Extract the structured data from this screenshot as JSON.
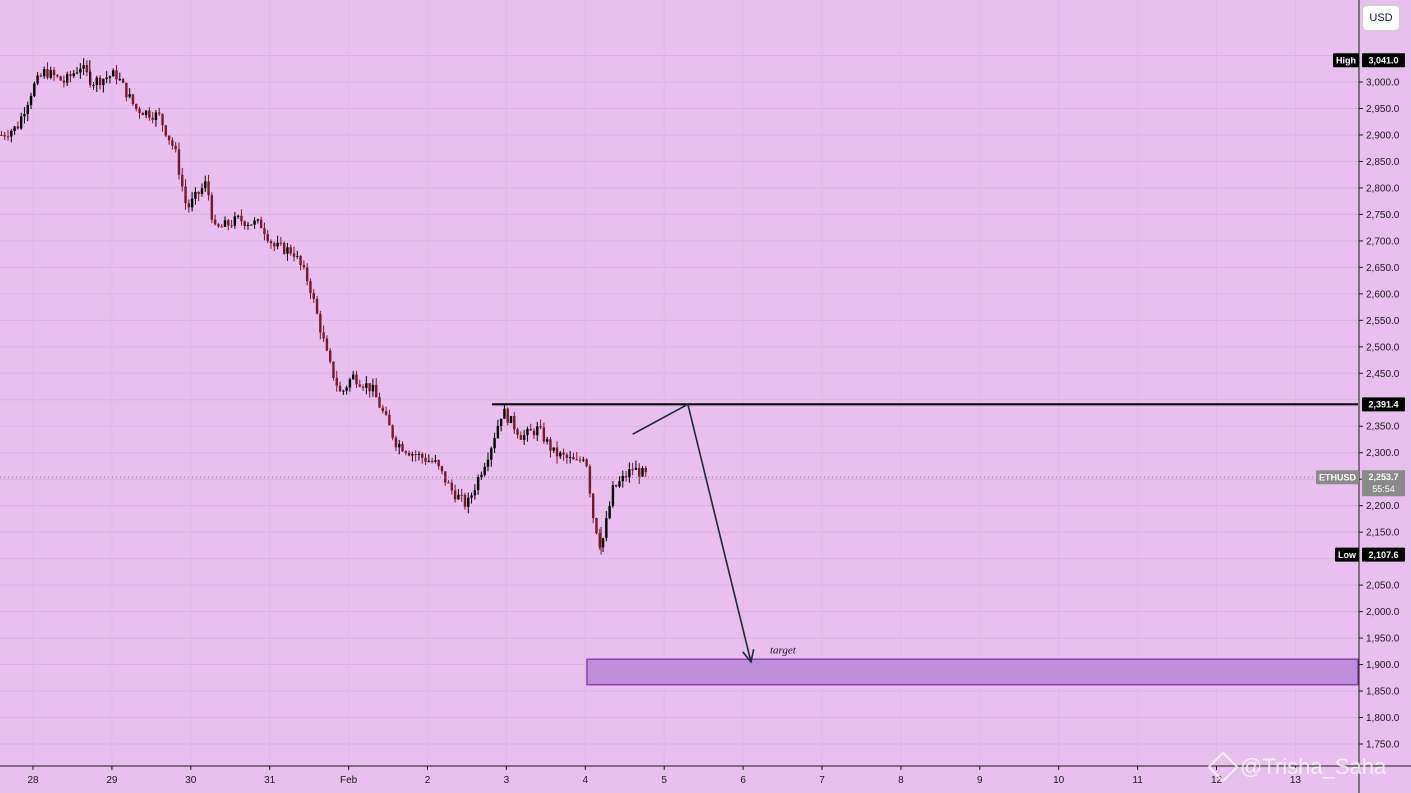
{
  "chart_data": {
    "type": "candlestick",
    "symbol": "ETHUSD",
    "currency": "USD",
    "ylim": [
      1720,
      3100
    ],
    "y_ticks": [
      "1,750.0",
      "1,800.0",
      "1,850.0",
      "1,900.0",
      "1,950.0",
      "2,000.0",
      "2,050.0",
      "2,150.0",
      "2,200.0",
      "2,250.0",
      "2,300.0",
      "2,350.0",
      "2,450.0",
      "2,500.0",
      "2,550.0",
      "2,600.0",
      "2,650.0",
      "2,700.0",
      "2,750.0",
      "2,800.0",
      "2,850.0",
      "2,900.0",
      "2,950.0",
      "3,000.0"
    ],
    "x_ticks": [
      {
        "label": "28",
        "day": 0
      },
      {
        "label": "29",
        "day": 1
      },
      {
        "label": "30",
        "day": 2
      },
      {
        "label": "31",
        "day": 3
      },
      {
        "label": "Feb",
        "day": 4
      },
      {
        "label": "2",
        "day": 5
      },
      {
        "label": "3",
        "day": 6
      },
      {
        "label": "4",
        "day": 7
      },
      {
        "label": "5",
        "day": 8
      },
      {
        "label": "6",
        "day": 9
      },
      {
        "label": "7",
        "day": 10
      },
      {
        "label": "8",
        "day": 11
      },
      {
        "label": "9",
        "day": 12
      },
      {
        "label": "10",
        "day": 13
      },
      {
        "label": "11",
        "day": 14
      },
      {
        "label": "12",
        "day": 15
      },
      {
        "label": "13",
        "day": 16
      }
    ],
    "price_path": [
      [
        -0.4,
        2900
      ],
      [
        -0.2,
        2915
      ],
      [
        0.0,
        2990
      ],
      [
        0.15,
        3020
      ],
      [
        0.4,
        3000
      ],
      [
        0.6,
        3030
      ],
      [
        0.75,
        3000
      ],
      [
        1.05,
        3015
      ],
      [
        1.3,
        2950
      ],
      [
        1.6,
        2935
      ],
      [
        1.8,
        2870
      ],
      [
        1.95,
        2760
      ],
      [
        2.2,
        2810
      ],
      [
        2.3,
        2720
      ],
      [
        2.6,
        2740
      ],
      [
        2.9,
        2730
      ],
      [
        3.05,
        2690
      ],
      [
        3.3,
        2680
      ],
      [
        3.5,
        2620
      ],
      [
        3.75,
        2470
      ],
      [
        3.9,
        2410
      ],
      [
        4.05,
        2445
      ],
      [
        4.3,
        2420
      ],
      [
        4.6,
        2320
      ],
      [
        4.8,
        2300
      ],
      [
        5.1,
        2280
      ],
      [
        5.3,
        2230
      ],
      [
        5.5,
        2200
      ],
      [
        5.8,
        2310
      ],
      [
        5.95,
        2380
      ],
      [
        6.2,
        2330
      ],
      [
        6.4,
        2345
      ],
      [
        6.6,
        2300
      ],
      [
        6.9,
        2280
      ],
      [
        7.0,
        2300
      ],
      [
        7.1,
        2180
      ],
      [
        7.2,
        2120
      ],
      [
        7.35,
        2230
      ],
      [
        7.6,
        2270
      ],
      [
        7.8,
        2255
      ]
    ],
    "high": {
      "label": "High",
      "value": "3,041.0"
    },
    "low": {
      "label": "Low",
      "value": "2,107.6"
    },
    "resistance": {
      "price": 2391.4,
      "label": "2,391.4"
    },
    "last_price": {
      "label": "ETHUSD",
      "value": "2,253.7",
      "countdown": "55:54"
    },
    "projection": [
      [
        7.6,
        2335
      ],
      [
        8.3,
        2391.4
      ],
      [
        9.1,
        1905
      ]
    ],
    "target_zone": {
      "top": 1910,
      "bottom": 1862,
      "label": "target"
    },
    "colors": {
      "up": "#000000",
      "down": "#7a1828",
      "tag": "#000000",
      "zone": "#bf8fd9",
      "zone_border": "#8b3fb8",
      "last_tag": "#8a8a8a"
    }
  },
  "ui": {
    "currency_button": "USD",
    "watermark": "@Trisha_Saha"
  }
}
